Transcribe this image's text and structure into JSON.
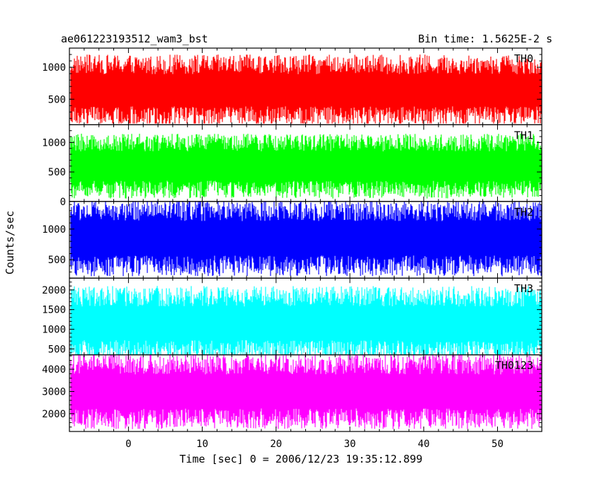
{
  "chart_data": {
    "type": "line",
    "title": "ae061223193512_wam3_bst",
    "bin_time_label": "Bin time: 1.5625E-2 s",
    "xlabel": "Time [sec] 0 = 2006/12/23 19:35:12.899",
    "ylabel": "Counts/sec",
    "xlim": [
      -8,
      56
    ],
    "x_ticks": [
      0,
      10,
      20,
      30,
      40,
      50
    ],
    "x_tick_labels": [
      "0",
      "10",
      "20",
      "30",
      "40",
      "50"
    ],
    "data_x_range": [
      -7.8,
      55.9
    ],
    "panels": [
      {
        "name": "TH0",
        "color": "#ff0000",
        "ylim": [
          100,
          1300
        ],
        "y_ticks": [
          500,
          1000
        ],
        "y_tick_labels": [
          "500",
          "1000"
        ],
        "mean": 640,
        "noise_amplitude": 560,
        "min": 120,
        "max": 1300
      },
      {
        "name": "TH1",
        "color": "#00ff00",
        "ylim": [
          0,
          1300
        ],
        "y_ticks": [
          0,
          500,
          1000
        ],
        "y_tick_labels": [
          "0",
          "500",
          "1000"
        ],
        "mean": 600,
        "noise_amplitude": 550,
        "min": 30,
        "max": 1300
      },
      {
        "name": "TH2",
        "color": "#0000ff",
        "ylim": [
          200,
          1450
        ],
        "y_ticks": [
          500,
          1000
        ],
        "y_tick_labels": [
          "500",
          "1000"
        ],
        "mean": 850,
        "noise_amplitude": 620,
        "min": 210,
        "max": 1450
      },
      {
        "name": "TH3",
        "color": "#00ffff",
        "ylim": [
          350,
          2300
        ],
        "y_ticks": [
          500,
          1000,
          1500,
          2000
        ],
        "y_tick_labels": [
          "500",
          "1000",
          "1500",
          "2000"
        ],
        "mean": 1150,
        "noise_amplitude": 950,
        "min": 360,
        "max": 2300
      },
      {
        "name": "TH0123",
        "color": "#ff00ff",
        "ylim": [
          1200,
          4650
        ],
        "y_ticks": [
          2000,
          3000,
          4000
        ],
        "y_tick_labels": [
          "2000",
          "3000",
          "4000"
        ],
        "mean": 3000,
        "noise_amplitude": 1700,
        "min": 1210,
        "max": 4650
      }
    ]
  }
}
